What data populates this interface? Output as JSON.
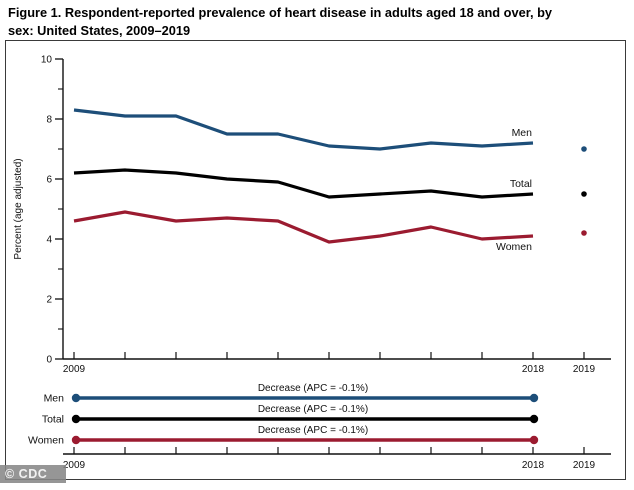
{
  "figure": {
    "title_line1": "Figure 1. Respondent-reported prevalence of heart disease in adults aged 18 and over, by",
    "title_line2": "sex: United States, 2009–2019",
    "watermark": "© CDC"
  },
  "chart_data": {
    "type": "line",
    "title": "Respondent-reported prevalence of heart disease in adults aged 18 and over, by sex: United States, 2009–2019",
    "xlabel": "",
    "ylabel": "Percent (age adjusted)",
    "ylim": [
      0,
      10
    ],
    "y_major_ticks": [
      0,
      2,
      4,
      6,
      8,
      10
    ],
    "y_minor_ticks": [
      1,
      3,
      5,
      7,
      9
    ],
    "x_axis_years": [
      2009,
      2010,
      2011,
      2012,
      2013,
      2014,
      2015,
      2016,
      2017,
      2018,
      2019
    ],
    "x_tick_labels_shown": [
      "2009",
      "2018",
      "2019"
    ],
    "x": [
      2009,
      2010,
      2011,
      2012,
      2013,
      2014,
      2015,
      2016,
      2017,
      2018
    ],
    "grid": "off",
    "legend_position": "inline-end-labels",
    "series": [
      {
        "name": "Men",
        "color": "#1d4e79",
        "values": [
          8.3,
          8.1,
          8.1,
          7.5,
          7.5,
          7.1,
          7.0,
          7.2,
          7.1,
          7.2
        ],
        "value_2019": 7.0,
        "label_side": "above"
      },
      {
        "name": "Total",
        "color": "#000000",
        "values": [
          6.2,
          6.3,
          6.2,
          6.0,
          5.9,
          5.4,
          5.5,
          5.6,
          5.4,
          5.5
        ],
        "value_2019": 5.5,
        "label_side": "above"
      },
      {
        "name": "Women",
        "color": "#9b1b30",
        "values": [
          4.6,
          4.9,
          4.6,
          4.7,
          4.6,
          3.9,
          4.1,
          4.4,
          4.0,
          4.1
        ],
        "value_2019": 4.2,
        "label_side": "below"
      }
    ],
    "trend_panel": {
      "span_years": [
        2009,
        2018
      ],
      "x_tick_labels_shown": [
        "2009",
        "2018",
        "2019"
      ],
      "rows": [
        {
          "label": "Men",
          "annotation": "Decrease (APC = -0.1%)",
          "color": "#1d4e79"
        },
        {
          "label": "Total",
          "annotation": "Decrease (APC = -0.1%)",
          "color": "#000000"
        },
        {
          "label": "Women",
          "annotation": "Decrease (APC = -0.1%)",
          "color": "#9b1b30"
        }
      ]
    }
  }
}
